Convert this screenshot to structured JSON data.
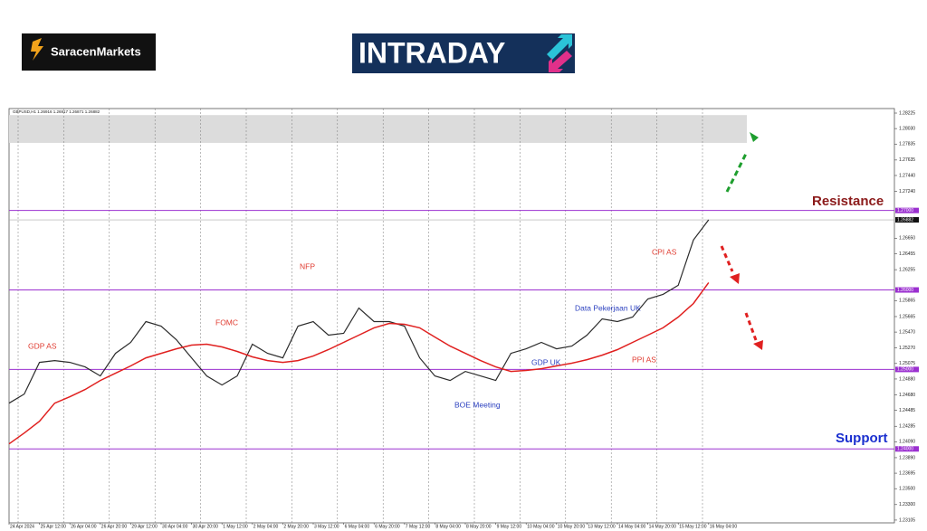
{
  "header": {
    "brand": "SaracenMarkets",
    "banner": "INTRADAY"
  },
  "chart_data": {
    "type": "line",
    "symbol_info": "GBPUSD,H1 1.26916 1.26917 1.26871 1.26882",
    "categories": [
      "24 Apr 2024",
      null,
      "25 Apr 12:00",
      null,
      "26 Apr 04:00",
      null,
      "26 Apr 20:00",
      null,
      "29 Apr 12:00",
      null,
      "30 Apr 04:00",
      null,
      "30 Apr 20:00",
      null,
      "1 May 12:00",
      null,
      "2 May 04:00",
      null,
      "2 May 20:00",
      null,
      "3 May 12:00",
      null,
      "6 May 04:00",
      null,
      "6 May 20:00",
      null,
      "7 May 12:00",
      null,
      "8 May 04:00",
      null,
      "8 May 20:00",
      null,
      "9 May 12:00",
      null,
      "10 May 04:00",
      null,
      "10 May 20:00",
      null,
      "13 May 12:00",
      null,
      "14 May 04:00",
      null,
      "14 May 20:00",
      null,
      "15 May 12:00",
      null,
      "16 May 04:00"
    ],
    "series": [
      {
        "name": "GBPUSD",
        "color": "#2b2b2b",
        "values": [
          1.24576,
          1.2469,
          1.25089,
          1.25112,
          1.25089,
          1.25032,
          1.24918,
          1.25203,
          1.2534,
          1.25602,
          1.25545,
          1.25374,
          1.25146,
          1.24918,
          1.24804,
          1.24918,
          1.25317,
          1.25203,
          1.25146,
          1.25545,
          1.25602,
          1.25431,
          1.25454,
          1.25773,
          1.25602,
          1.25602,
          1.25545,
          1.25146,
          1.24918,
          1.24861,
          1.24975,
          1.24918,
          1.24861,
          1.25203,
          1.2526,
          1.2534,
          1.2526,
          1.25294,
          1.25431,
          1.25636,
          1.25602,
          1.25659,
          1.25887,
          1.25944,
          1.26058,
          1.26629,
          1.26882
        ]
      },
      {
        "name": "MA",
        "color": "#e0201f",
        "values": [
          1.24063,
          1.242,
          1.24348,
          1.24576,
          1.24656,
          1.24747,
          1.24861,
          1.24952,
          1.25044,
          1.25146,
          1.25203,
          1.2526,
          1.25306,
          1.25317,
          1.25283,
          1.25226,
          1.25158,
          1.25112,
          1.25089,
          1.25112,
          1.25169,
          1.25249,
          1.2534,
          1.25431,
          1.25523,
          1.25579,
          1.25568,
          1.25523,
          1.25408,
          1.25294,
          1.25203,
          1.25112,
          1.25032,
          1.24975,
          1.24987,
          1.25009,
          1.25044,
          1.25078,
          1.25123,
          1.2518,
          1.25249,
          1.2534,
          1.25431,
          1.25523,
          1.25659,
          1.2583,
          1.26093
        ]
      }
    ],
    "ylim": [
      1.2307,
      1.28282
    ],
    "yticks": [
      {
        "value": 1.28225,
        "label": "1.28225"
      },
      {
        "value": 1.2803,
        "label": "1.28030"
      },
      {
        "value": 1.27835,
        "label": "1.27835"
      },
      {
        "value": 1.27635,
        "label": "1.27635"
      },
      {
        "value": 1.2744,
        "label": "1.27440"
      },
      {
        "value": 1.2724,
        "label": "1.27240"
      },
      {
        "value": 1.2665,
        "label": "1.26650"
      },
      {
        "value": 1.26455,
        "label": "1.26455"
      },
      {
        "value": 1.26255,
        "label": "1.26255"
      },
      {
        "value": 1.25865,
        "label": "1.25865"
      },
      {
        "value": 1.25665,
        "label": "1.25665"
      },
      {
        "value": 1.2547,
        "label": "1.25470"
      },
      {
        "value": 1.2527,
        "label": "1.25270"
      },
      {
        "value": 1.25075,
        "label": "1.25075"
      },
      {
        "value": 1.2488,
        "label": "1.24880"
      },
      {
        "value": 1.2468,
        "label": "1.24680"
      },
      {
        "value": 1.24485,
        "label": "1.24485"
      },
      {
        "value": 1.24285,
        "label": "1.24285"
      },
      {
        "value": 1.2409,
        "label": "1.24090"
      },
      {
        "value": 1.2389,
        "label": "1.23890"
      },
      {
        "value": 1.23695,
        "label": "1.23695"
      },
      {
        "value": 1.235,
        "label": "1.23500"
      },
      {
        "value": 1.233,
        "label": "1.23300"
      },
      {
        "value": 1.23105,
        "label": "1.23105"
      }
    ],
    "levels": [
      {
        "value": 1.27,
        "label": "1.27000"
      },
      {
        "value": 1.26,
        "label": "1.26000"
      },
      {
        "value": 1.25,
        "label": "1.25000"
      },
      {
        "value": 1.24,
        "label": "1.24000"
      }
    ],
    "level_color": "#9b30d0",
    "last": {
      "value": 1.26882,
      "label": "1.26882"
    },
    "zone": [
      1.2785,
      1.282
    ],
    "zone_labels": [
      "Resistance",
      "Support"
    ],
    "annotations": [
      {
        "text": "GDP AS",
        "color": "#e03a2f"
      },
      {
        "text": "FOMC",
        "color": "#e03a2f"
      },
      {
        "text": "NFP",
        "color": "#e03a2f"
      },
      {
        "text": "BOE Meeting",
        "color": "#2a3fbf"
      },
      {
        "text": "GDP UK",
        "color": "#2a3fbf"
      },
      {
        "text": "Data Pekerjaan UK",
        "color": "#2a3fbf"
      },
      {
        "text": "PPI AS",
        "color": "#e03a2f"
      },
      {
        "text": "CPI AS",
        "color": "#e03a2f"
      }
    ]
  }
}
